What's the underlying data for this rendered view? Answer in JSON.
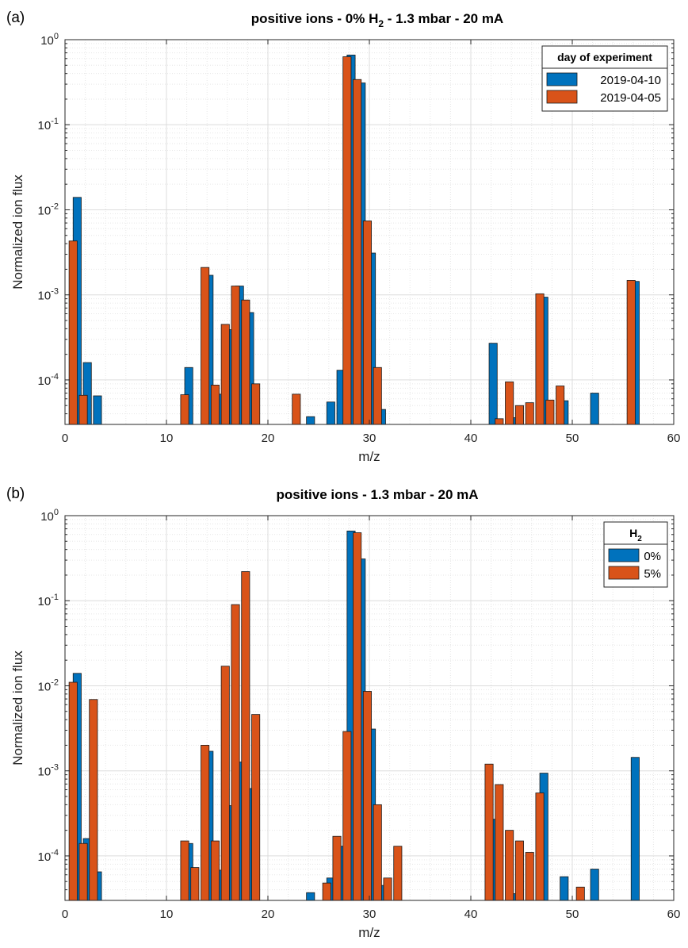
{
  "colors": {
    "s1": "#0072BD",
    "s2": "#D95319",
    "edge": "#1a1a1a",
    "grid": "#dcdcdc"
  },
  "chart_data": [
    {
      "type": "bar",
      "panel_label": "(a)",
      "title_parts": [
        "positive ions  -  0% H",
        "2",
        "  -  1.3 mbar  -  20 mA"
      ],
      "xlabel": "m/z",
      "ylabel": "Normalized ion flux",
      "xlim": [
        0,
        60
      ],
      "ylim": [
        3e-05,
        1
      ],
      "yscale": "log",
      "xticks": [
        "0",
        "10",
        "20",
        "30",
        "40",
        "50",
        "60"
      ],
      "yticks": [
        {
          "base": "10",
          "exp": "0"
        },
        {
          "base": "10",
          "exp": "-1"
        },
        {
          "base": "10",
          "exp": "-2"
        },
        {
          "base": "10",
          "exp": "-3"
        },
        {
          "base": "10",
          "exp": "-4"
        }
      ],
      "grid": true,
      "legend_title": "day of experiment",
      "legend_sub": "",
      "legend_position": "top-right",
      "series": [
        {
          "name": "2019-04-10",
          "x": [
            1,
            2,
            3,
            12,
            14,
            15,
            16,
            17,
            18,
            24,
            26,
            27,
            28,
            29,
            30,
            31,
            42,
            44,
            47,
            49,
            52,
            56
          ],
          "values": [
            0.014,
            0.00016,
            6.5e-05,
            0.00014,
            0.0017,
            6.8e-05,
            0.00039,
            0.00127,
            0.00062,
            3.7e-05,
            5.5e-05,
            0.00013,
            0.66,
            0.31,
            0.0031,
            4.5e-05,
            0.00027,
            3.6e-05,
            0.00094,
            5.7e-05,
            7e-05,
            0.00144
          ]
        },
        {
          "name": "2019-04-05",
          "x": [
            1,
            2,
            12,
            14,
            15,
            16,
            17,
            18,
            19,
            23,
            28,
            29,
            30,
            31,
            43,
            44,
            45,
            46,
            47,
            48,
            49,
            56
          ],
          "values": [
            0.0043,
            6.6e-05,
            6.7e-05,
            0.0021,
            8.7e-05,
            0.00045,
            0.00127,
            0.00087,
            9e-05,
            6.8e-05,
            0.63,
            0.34,
            0.0074,
            0.00014,
            3.5e-05,
            9.5e-05,
            5e-05,
            5.4e-05,
            0.00103,
            5.8e-05,
            8.5e-05,
            0.00148
          ]
        }
      ]
    },
    {
      "type": "bar",
      "panel_label": "(b)",
      "title_parts": [
        "positive ions  -  1.3 mbar  -  20 mA",
        "",
        ""
      ],
      "xlabel": "m/z",
      "ylabel": "Normalized ion flux",
      "xlim": [
        0,
        60
      ],
      "ylim": [
        3e-05,
        1
      ],
      "yscale": "log",
      "xticks": [
        "0",
        "10",
        "20",
        "30",
        "40",
        "50",
        "60"
      ],
      "yticks": [
        {
          "base": "10",
          "exp": "0"
        },
        {
          "base": "10",
          "exp": "-1"
        },
        {
          "base": "10",
          "exp": "-2"
        },
        {
          "base": "10",
          "exp": "-3"
        },
        {
          "base": "10",
          "exp": "-4"
        }
      ],
      "grid": true,
      "legend_title": "H",
      "legend_sub": "2",
      "legend_position": "top-right",
      "series": [
        {
          "name": "0%",
          "x": [
            1,
            2,
            3,
            12,
            14,
            15,
            16,
            17,
            18,
            24,
            26,
            27,
            28,
            29,
            30,
            31,
            42,
            44,
            47,
            49,
            52,
            56
          ],
          "values": [
            0.014,
            0.00016,
            6.5e-05,
            0.00014,
            0.0017,
            6.8e-05,
            0.00039,
            0.00127,
            0.00062,
            3.7e-05,
            5.5e-05,
            0.00013,
            0.66,
            0.31,
            0.0031,
            4.5e-05,
            0.00027,
            3.6e-05,
            0.00094,
            5.7e-05,
            7e-05,
            0.00144
          ]
        },
        {
          "name": "5%",
          "x": [
            1,
            2,
            3,
            12,
            13,
            14,
            15,
            16,
            17,
            18,
            19,
            26,
            27,
            28,
            29,
            30,
            31,
            32,
            33,
            41,
            42,
            43,
            44,
            45,
            46,
            47,
            51
          ],
          "values": [
            0.011,
            0.00014,
            0.0069,
            0.00015,
            7.3e-05,
            0.002,
            0.00015,
            0.017,
            0.09,
            0.22,
            0.0046,
            4.8e-05,
            0.00017,
            0.0029,
            0.63,
            0.0086,
            0.0004,
            5.5e-05,
            0.00013,
            3e-05,
            0.0012,
            0.00069,
            0.0002,
            0.00015,
            0.00011,
            0.00055,
            4.3e-05
          ]
        }
      ]
    }
  ]
}
